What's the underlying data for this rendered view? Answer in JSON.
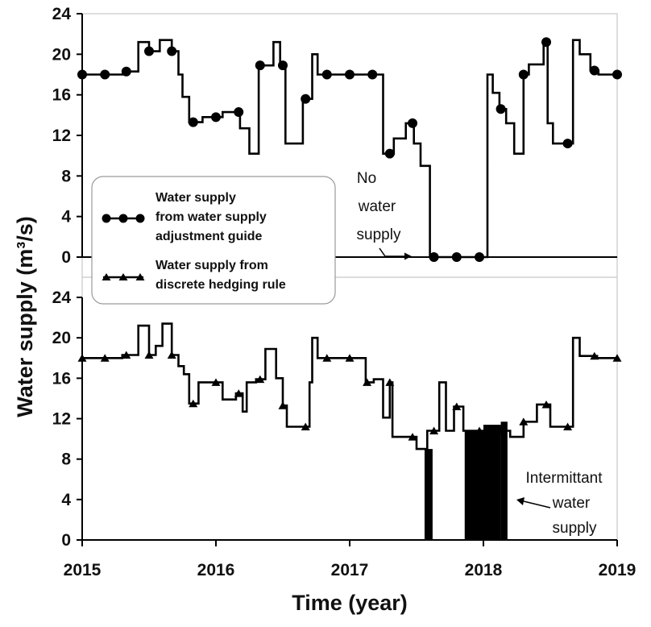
{
  "chart_data": {
    "type": "line",
    "xlabel": "Time (year)",
    "ylabel": "Water supply (m³/s)",
    "x_ticks": [
      "2015",
      "2016",
      "2017",
      "2018",
      "2019"
    ],
    "xlim": [
      2015,
      2019
    ],
    "y_ticks": [
      "0",
      "4",
      "8",
      "12",
      "16",
      "20",
      "24"
    ],
    "ylim": [
      0,
      24
    ],
    "grid": false,
    "panels": [
      {
        "position": "top",
        "series": [
          {
            "name": "Water supply from water supply adjustment guide",
            "marker": "circle",
            "steps": [
              [
                2015.0,
                18.0
              ],
              [
                2015.33,
                18.3
              ],
              [
                2015.42,
                21.2
              ],
              [
                2015.5,
                20.3
              ],
              [
                2015.58,
                21.4
              ],
              [
                2015.67,
                20.3
              ],
              [
                2015.72,
                18.0
              ],
              [
                2015.75,
                15.8
              ],
              [
                2015.8,
                13.3
              ],
              [
                2015.9,
                13.8
              ],
              [
                2016.05,
                14.3
              ],
              [
                2016.18,
                12.7
              ],
              [
                2016.25,
                10.2
              ],
              [
                2016.32,
                18.9
              ],
              [
                2016.43,
                21.2
              ],
              [
                2016.48,
                18.9
              ],
              [
                2016.52,
                11.2
              ],
              [
                2016.65,
                15.6
              ],
              [
                2016.72,
                20.0
              ],
              [
                2016.76,
                18.0
              ],
              [
                2017.25,
                10.2
              ],
              [
                2017.33,
                11.7
              ],
              [
                2017.42,
                13.2
              ],
              [
                2017.48,
                11.2
              ],
              [
                2017.53,
                9.0
              ],
              [
                2017.6,
                0.0
              ],
              [
                2018.03,
                18.0
              ],
              [
                2018.07,
                16.2
              ],
              [
                2018.12,
                14.6
              ],
              [
                2018.17,
                13.2
              ],
              [
                2018.23,
                10.2
              ],
              [
                2018.3,
                18.0
              ],
              [
                2018.34,
                19.0
              ],
              [
                2018.45,
                21.2
              ],
              [
                2018.48,
                13.2
              ],
              [
                2018.52,
                11.2
              ],
              [
                2018.67,
                21.4
              ],
              [
                2018.72,
                20.0
              ],
              [
                2018.8,
                18.4
              ],
              [
                2018.86,
                18.0
              ],
              [
                2019.0,
                18.0
              ]
            ],
            "marker_x": [
              2015.0,
              2015.17,
              2015.33,
              2015.5,
              2015.67,
              2015.83,
              2016.0,
              2016.17,
              2016.33,
              2016.5,
              2016.67,
              2016.83,
              2017.0,
              2017.17,
              2017.3,
              2017.47,
              2017.63,
              2017.8,
              2017.97,
              2018.13,
              2018.3,
              2018.47,
              2018.63,
              2018.83,
              2019.0
            ]
          }
        ]
      },
      {
        "position": "bottom",
        "series": [
          {
            "name": "Water supply from discrete hedging rule",
            "marker": "triangle",
            "steps": [
              [
                2015.0,
                18.0
              ],
              [
                2015.3,
                18.3
              ],
              [
                2015.42,
                21.2
              ],
              [
                2015.5,
                18.3
              ],
              [
                2015.55,
                19.2
              ],
              [
                2015.6,
                21.4
              ],
              [
                2015.67,
                18.3
              ],
              [
                2015.72,
                17.2
              ],
              [
                2015.76,
                16.4
              ],
              [
                2015.8,
                13.5
              ],
              [
                2015.87,
                15.6
              ],
              [
                2016.05,
                13.9
              ],
              [
                2016.15,
                14.5
              ],
              [
                2016.2,
                12.7
              ],
              [
                2016.23,
                15.6
              ],
              [
                2016.3,
                15.9
              ],
              [
                2016.37,
                18.9
              ],
              [
                2016.45,
                16.0
              ],
              [
                2016.5,
                13.3
              ],
              [
                2016.53,
                11.2
              ],
              [
                2016.7,
                15.6
              ],
              [
                2016.72,
                20.0
              ],
              [
                2016.76,
                18.0
              ],
              [
                2017.12,
                15.6
              ],
              [
                2017.18,
                15.9
              ],
              [
                2017.25,
                12.1
              ],
              [
                2017.3,
                15.6
              ],
              [
                2017.32,
                10.2
              ],
              [
                2017.5,
                9.0
              ],
              [
                2017.58,
                10.8
              ],
              [
                2017.67,
                15.6
              ],
              [
                2017.72,
                10.8
              ],
              [
                2017.78,
                13.2
              ],
              [
                2017.85,
                10.8
              ],
              [
                2018.2,
                10.2
              ],
              [
                2018.3,
                11.7
              ],
              [
                2018.35,
                11.7
              ],
              [
                2018.4,
                13.4
              ],
              [
                2018.5,
                11.2
              ],
              [
                2018.67,
                20.0
              ],
              [
                2018.72,
                18.2
              ],
              [
                2018.85,
                18.0
              ],
              [
                2019.0,
                18.0
              ]
            ],
            "intermittent_blocks": [
              {
                "x_start": 2017.56,
                "x_end": 2017.62,
                "y_top": 9.0
              },
              {
                "x_start": 2017.86,
                "x_end": 2018.0,
                "y_top": 10.8
              },
              {
                "x_start": 2018.0,
                "x_end": 2018.13,
                "y_top": 11.4
              },
              {
                "x_start": 2018.13,
                "x_end": 2018.18,
                "y_top": 11.7
              }
            ],
            "marker_x": [
              2015.0,
              2015.17,
              2015.33,
              2015.5,
              2015.67,
              2015.83,
              2016.0,
              2016.17,
              2016.33,
              2016.5,
              2016.67,
              2016.83,
              2017.0,
              2017.13,
              2017.3,
              2017.47,
              2017.63,
              2017.8,
              2017.97,
              2018.13,
              2018.3,
              2018.47,
              2018.63,
              2018.83,
              2019.0
            ]
          }
        ]
      }
    ],
    "legend": {
      "placement": "left-middle",
      "entries": [
        {
          "marker": "circle",
          "lines": [
            "Water supply",
            "from water supply",
            "adjustment guide"
          ]
        },
        {
          "marker": "triangle",
          "lines": [
            "Water supply from",
            "discrete hedging rule"
          ]
        }
      ]
    },
    "annotations": [
      {
        "id": "no-water-supply",
        "lines": [
          "No",
          "water",
          "supply"
        ]
      },
      {
        "id": "intermittent-water-supply",
        "lines": [
          "Intermittant",
          "water",
          "supply"
        ]
      }
    ]
  }
}
